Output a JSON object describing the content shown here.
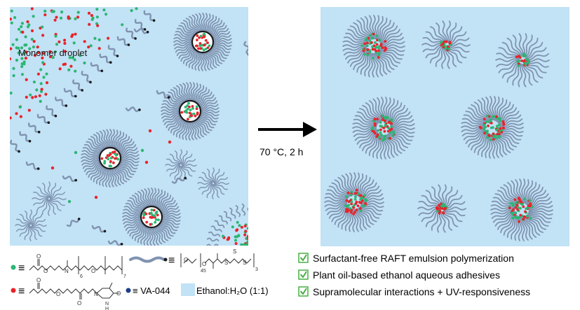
{
  "left_panel": {
    "droplet_label": "Monomer  droplet"
  },
  "arrow": {
    "condition_label": "70 °C, 2 h"
  },
  "legend": {
    "green_symbol": "≡",
    "red_symbol": "≡",
    "chain_symbol": "≡",
    "initiator_label": "≡ VA-044",
    "solvent_label": "Ethanol:H₂O (1:1)",
    "subscripts": {
      "green_n1": "6",
      "green_n2": "7",
      "peg": "45",
      "alkyl": "3"
    },
    "atoms": {
      "N": "N",
      "O": "O",
      "S": "S",
      "H": "H"
    }
  },
  "features": [
    "Surfactant-free RAFT emulsion polymerization",
    "Plant oil-based ethanol aqueous adhesives",
    "Supramolecular interactions + UV-responsiveness"
  ],
  "colors": {
    "background": "#c2e2f5",
    "green": "#2bb673",
    "red": "#e8232a",
    "chain": "#7f93b0",
    "check": "#3aaa35"
  }
}
